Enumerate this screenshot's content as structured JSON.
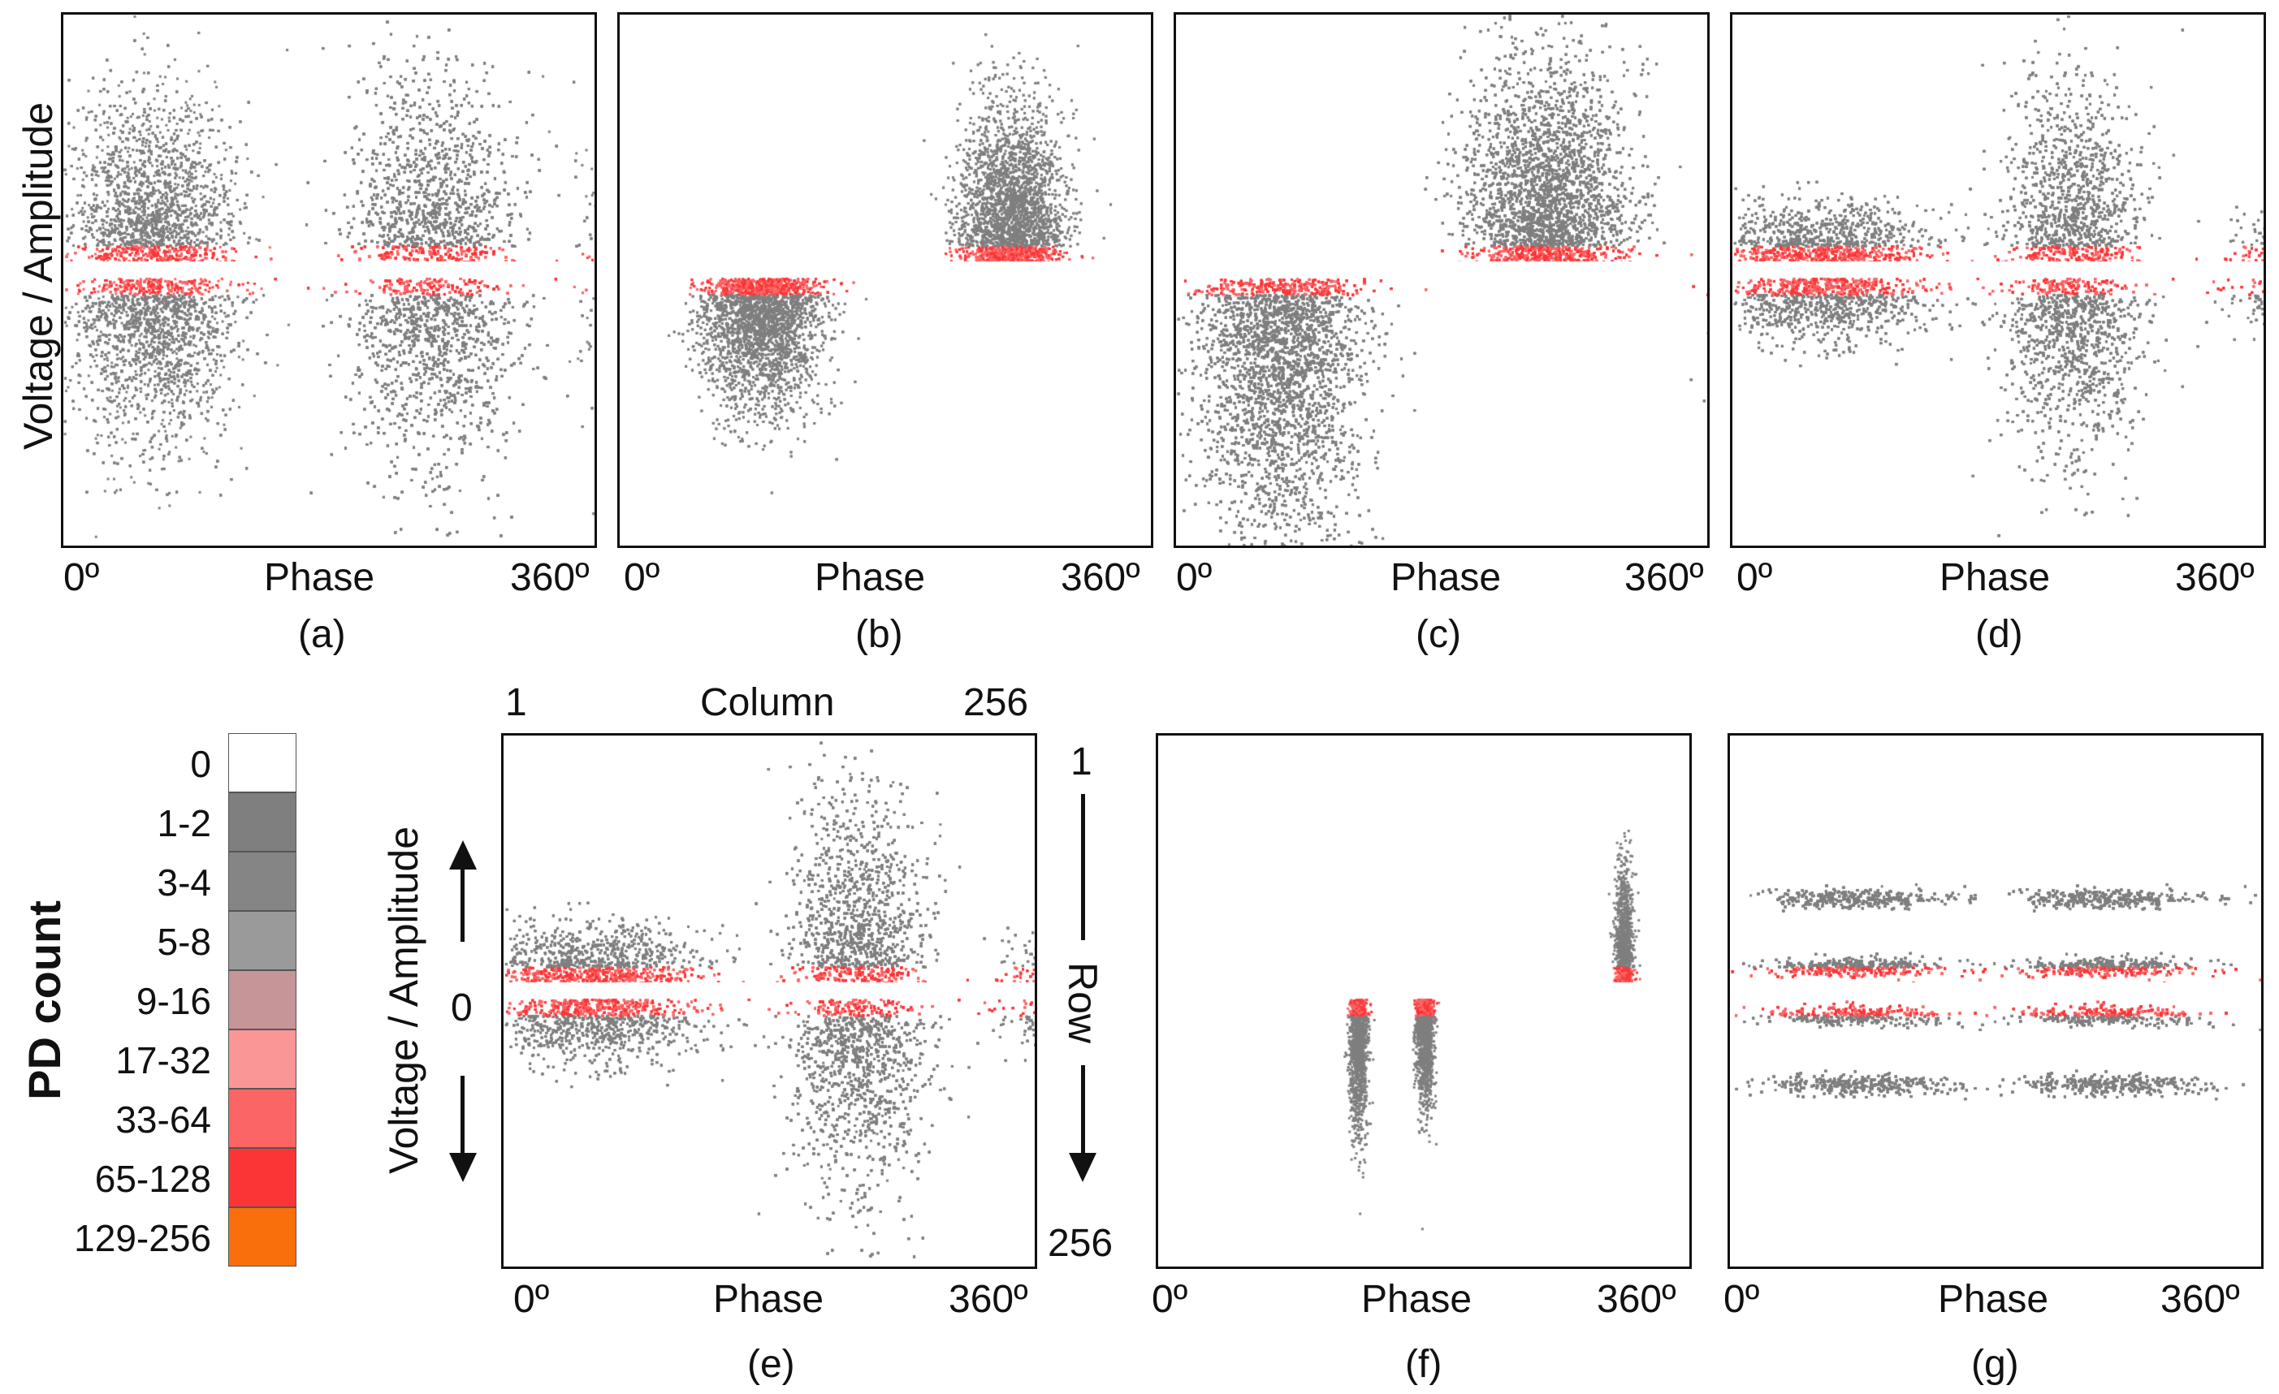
{
  "chart_data": {
    "type": "scatter",
    "description_units": "phase in degrees (0-360), amplitude symmetric about 0",
    "x_label": "Phase",
    "x_tick_start": "0º",
    "x_tick_end": "360º",
    "x_range": [
      0,
      360
    ],
    "y_label": "Voltage / Amplitude",
    "panels": [
      {
        "id": "a",
        "caption": "(a)",
        "clusters": [
          {
            "phase_center": 60,
            "phase_spread": 55,
            "polarity": "both",
            "amp_scale": 0.32,
            "density": 1.0
          },
          {
            "phase_center": 250,
            "phase_spread": 55,
            "polarity": "both",
            "amp_scale": 0.38,
            "density": 1.3
          }
        ]
      },
      {
        "id": "b",
        "caption": "(b)",
        "clusters": [
          {
            "phase_center": 95,
            "phase_spread": 40,
            "polarity": "negative",
            "amp_scale": 0.25,
            "density": 0.6
          },
          {
            "phase_center": 265,
            "phase_spread": 35,
            "polarity": "positive",
            "amp_scale": 0.3,
            "density": 0.55
          }
        ]
      },
      {
        "id": "c",
        "caption": "(c)",
        "clusters": [
          {
            "phase_center": 70,
            "phase_spread": 55,
            "polarity": "negative",
            "amp_scale": 0.55,
            "density": 1.2
          },
          {
            "phase_center": 250,
            "phase_spread": 55,
            "polarity": "positive",
            "amp_scale": 0.4,
            "density": 1.1
          }
        ]
      },
      {
        "id": "d",
        "caption": "(d)",
        "clusters": [
          {
            "phase_center": 60,
            "phase_spread": 70,
            "polarity": "both",
            "amp_scale": 0.12,
            "density": 0.8
          },
          {
            "phase_center": 230,
            "phase_spread": 45,
            "polarity": "both",
            "amp_scale": 0.35,
            "density": 1.1
          }
        ]
      },
      {
        "id": "e",
        "caption": "(e)",
        "clusters": [
          {
            "phase_center": 60,
            "phase_spread": 70,
            "polarity": "both",
            "amp_scale": 0.12,
            "density": 0.7
          },
          {
            "phase_center": 240,
            "phase_spread": 45,
            "polarity": "both",
            "amp_scale": 0.38,
            "density": 1.2
          }
        ]
      },
      {
        "id": "f",
        "caption": "(f)",
        "clusters": [
          {
            "phase_center": 135,
            "phase_spread": 6,
            "polarity": "negative",
            "amp_scale": 0.25,
            "density": 0.15
          },
          {
            "phase_center": 180,
            "phase_spread": 6,
            "polarity": "negative",
            "amp_scale": 0.2,
            "density": 0.15
          },
          {
            "phase_center": 315,
            "phase_spread": 6,
            "polarity": "positive",
            "amp_scale": 0.22,
            "density": 0.12
          }
        ]
      },
      {
        "id": "g",
        "caption": "(g)",
        "clusters": [
          {
            "phase_center": 85,
            "phase_spread": 65,
            "polarity": "bands",
            "amp_scale": 0.2,
            "density": 1.0
          },
          {
            "phase_center": 255,
            "phase_spread": 65,
            "polarity": "bands",
            "amp_scale": 0.2,
            "density": 1.0
          }
        ]
      }
    ],
    "legend": {
      "title": "PD count",
      "entries": [
        {
          "label": "0",
          "color": "#ffffff"
        },
        {
          "label": "1-2",
          "color": "#7f7f7f"
        },
        {
          "label": "3-4",
          "color": "#858585"
        },
        {
          "label": "5-8",
          "color": "#9a9a9a"
        },
        {
          "label": "9-16",
          "color": "#c59597"
        },
        {
          "label": "17-32",
          "color": "#fb9697"
        },
        {
          "label": "33-64",
          "color": "#fb6566"
        },
        {
          "label": "65-128",
          "color": "#fb3536"
        },
        {
          "label": "129-256",
          "color": "#f86f0c"
        }
      ]
    },
    "panel_e_axes": {
      "column_label": "Column",
      "column_start": "1",
      "column_end": "256",
      "row_label": "Row",
      "row_start": "1",
      "row_end": "256",
      "zero_label": "0"
    }
  }
}
